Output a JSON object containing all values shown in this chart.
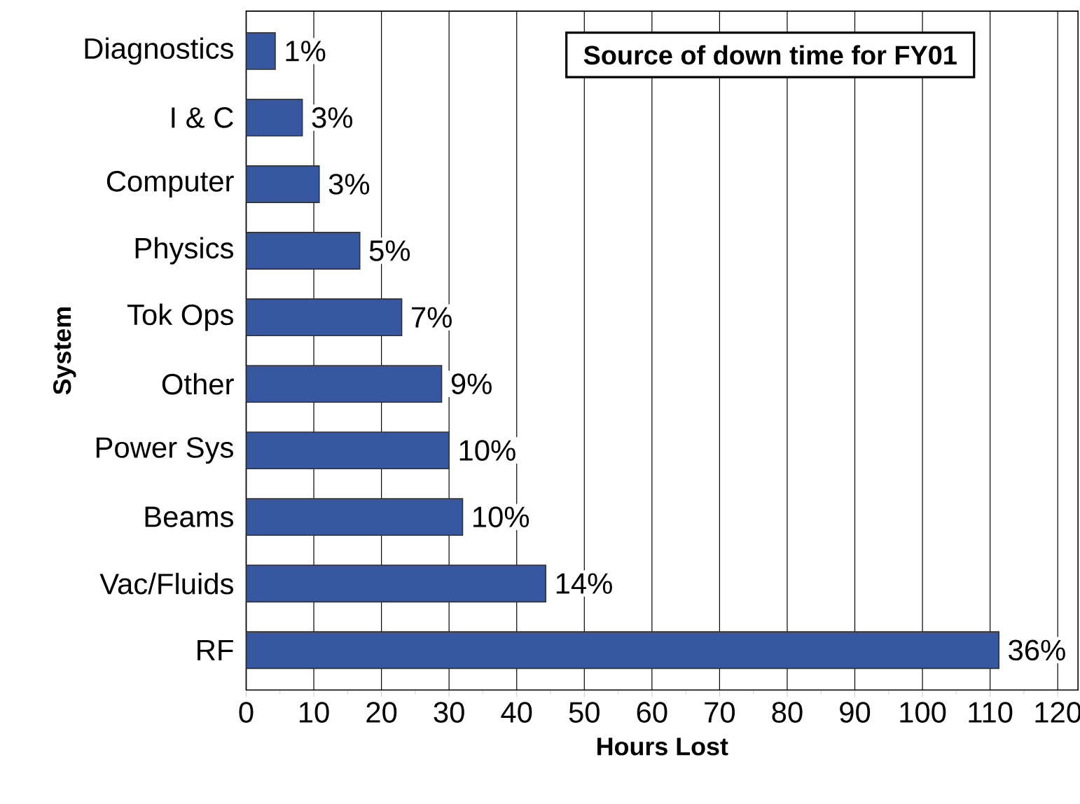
{
  "chart_data": {
    "type": "bar",
    "orientation": "horizontal",
    "title": "Source of down time for FY01",
    "xlabel": "Hours  Lost",
    "ylabel": "System",
    "categories": [
      "Diagnostics",
      "I & C",
      "Computer",
      "Physics",
      "Tok Ops",
      "Other",
      "Power Sys",
      "Beams",
      "Vac/Fluids",
      "RF"
    ],
    "values": [
      4.3,
      8.3,
      10.8,
      16.8,
      23,
      28.9,
      30,
      32,
      44.3,
      111.3
    ],
    "annotations": [
      {
        "text": "1%",
        "x": 4.3,
        "y": "Diagnostics"
      },
      {
        "text": "3%",
        "x": 8.3,
        "y": "I & C"
      },
      {
        "text": "3%",
        "x": 10.8,
        "y": "Computer"
      },
      {
        "text": "5%",
        "x": 16.8,
        "y": "Physics"
      },
      {
        "text": "7%",
        "x": 23,
        "y": "Tok Ops"
      },
      {
        "text": "9%",
        "x": 28.9,
        "y": "Other"
      },
      {
        "text": "10%",
        "x": 30,
        "y": "Power Sys"
      },
      {
        "text": "10%",
        "x": 32,
        "y": "Beams"
      },
      {
        "text": "14%",
        "x": 44.3,
        "y": "Vac/Fluids"
      },
      {
        "text": "36%",
        "x": 111.3,
        "y": "RF"
      }
    ],
    "color": "#3757a0",
    "xlim": [
      0,
      123
    ],
    "xticks": [
      0,
      10,
      20,
      30,
      40,
      50,
      60,
      70,
      80,
      90,
      100,
      110,
      120
    ],
    "grid": "x"
  }
}
